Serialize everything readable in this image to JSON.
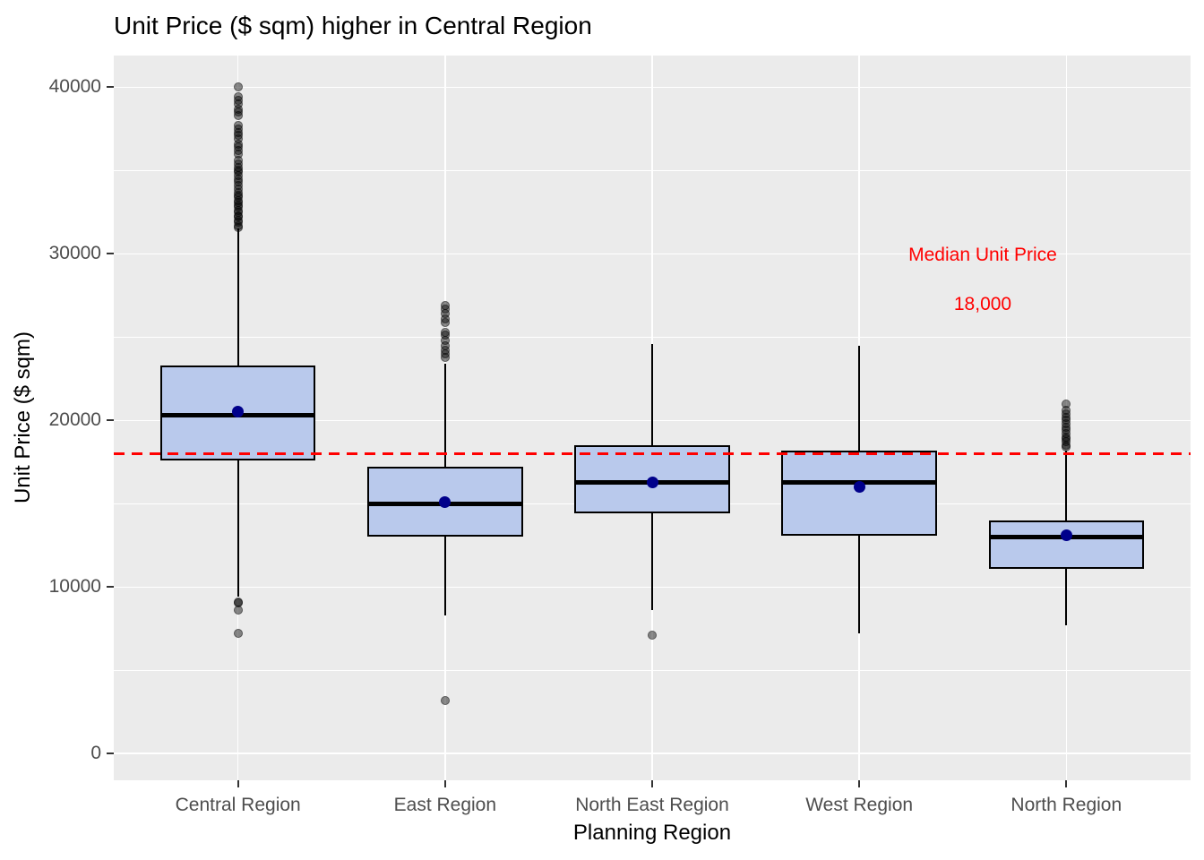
{
  "chart_data": {
    "type": "boxplot",
    "title": "Unit Price ($ sqm) higher in Central Region",
    "xlabel": "Planning Region",
    "ylabel": "Unit Price ($ sqm)",
    "categories": [
      "Central Region",
      "East Region",
      "North East Region",
      "West Region",
      "North Region"
    ],
    "y_ticks": [
      0,
      10000,
      20000,
      30000,
      40000
    ],
    "y_tick_labels": [
      "0",
      "10000",
      "20000",
      "30000",
      "40000"
    ],
    "y_minor_ticks": [
      5000,
      15000,
      25000,
      35000
    ],
    "ylim": [
      -1600,
      41900
    ],
    "grid": "white major and minor gridlines on gray panel",
    "legend": "none",
    "reference_line": {
      "value": 18000,
      "style": "dashed",
      "color": "#FF0000",
      "label": "Median Unit Price",
      "value_label": "18,000"
    },
    "series": [
      {
        "category": "Central Region",
        "q1": 17600,
        "median": 20300,
        "q3": 23300,
        "mean": 20500,
        "whisker_low": 9400,
        "whisker_high": 31500,
        "outliers_low": [
          9100,
          9050,
          8600,
          7200
        ],
        "outliers_high": [
          31600,
          31700,
          31900,
          32000,
          32200,
          32300,
          32500,
          32600,
          32800,
          32900,
          33100,
          33200,
          33400,
          33500,
          33700,
          33900,
          34100,
          34300,
          34500,
          34700,
          34900,
          35000,
          35200,
          35400,
          35600,
          36000,
          36200,
          36400,
          36600,
          36900,
          37100,
          37300,
          37500,
          37700,
          38300,
          38500,
          38700,
          39000,
          39200,
          39400,
          40000
        ]
      },
      {
        "category": "East Region",
        "q1": 13000,
        "median": 15000,
        "q3": 17200,
        "mean": 15100,
        "whisker_low": 8300,
        "whisker_high": 23400,
        "outliers_low": [
          3200
        ],
        "outliers_high": [
          23800,
          24000,
          24200,
          24500,
          24800,
          25100,
          25300,
          25900,
          26100,
          26400,
          26700,
          26900
        ]
      },
      {
        "category": "North East Region",
        "q1": 14400,
        "median": 16300,
        "q3": 18500,
        "mean": 16300,
        "whisker_low": 8600,
        "whisker_high": 24600,
        "outliers_low": [
          7100
        ],
        "outliers_high": []
      },
      {
        "category": "West Region",
        "q1": 13100,
        "median": 16300,
        "q3": 18200,
        "mean": 16000,
        "whisker_low": 7200,
        "whisker_high": 24500,
        "outliers_low": [],
        "outliers_high": []
      },
      {
        "category": "North Region",
        "q1": 11100,
        "median": 13000,
        "q3": 14000,
        "mean": 13100,
        "whisker_low": 7700,
        "whisker_high": 18200,
        "outliers_low": [],
        "outliers_high": [
          18400,
          18500,
          18700,
          18900,
          19000,
          19200,
          19400,
          19600,
          19800,
          20000,
          20200,
          20400,
          20600,
          21000
        ]
      }
    ],
    "colors": {
      "box_fill": "#B9C9EC",
      "box_border": "#000000",
      "median": "#000000",
      "whisker": "#000000",
      "mean_point": "#00008B",
      "outlier": "#000000",
      "outlier_alpha": 0.45,
      "panel_bg": "#EBEBEB",
      "grid": "#FFFFFF",
      "axis_text": "#4D4D4D",
      "tick_mark": "#333333",
      "title_text": "#000000"
    }
  }
}
